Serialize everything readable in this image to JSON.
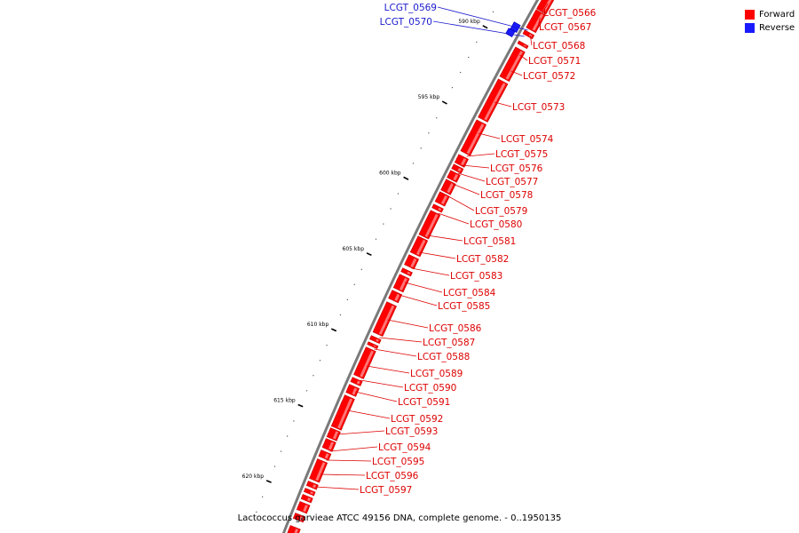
{
  "legend": {
    "forward_label": "Forward",
    "reverse_label": "Reverse",
    "forward_color": "#ff0000",
    "reverse_color": "#1a1aff"
  },
  "caption": "Lactococcus garvieae ATCC 49156 DNA, complete genome. - 0..1950135",
  "scale_ticks": [
    {
      "kbp": 590,
      "label": "590 kbp"
    },
    {
      "kbp": 595,
      "label": "595 kbp"
    },
    {
      "kbp": 600,
      "label": "600 kbp"
    },
    {
      "kbp": 605,
      "label": "605 kbp"
    },
    {
      "kbp": 610,
      "label": "610 kbp"
    },
    {
      "kbp": 615,
      "label": "615 kbp"
    },
    {
      "kbp": 620,
      "label": "620 kbp"
    }
  ],
  "genes": [
    {
      "name": "LCGT_0566",
      "strand": "forward"
    },
    {
      "name": "LCGT_0567",
      "strand": "forward"
    },
    {
      "name": "LCGT_0568",
      "strand": "forward"
    },
    {
      "name": "LCGT_0569",
      "strand": "reverse"
    },
    {
      "name": "LCGT_0570",
      "strand": "reverse"
    },
    {
      "name": "LCGT_0571",
      "strand": "forward"
    },
    {
      "name": "LCGT_0572",
      "strand": "forward"
    },
    {
      "name": "LCGT_0573",
      "strand": "forward"
    },
    {
      "name": "LCGT_0574",
      "strand": "forward"
    },
    {
      "name": "LCGT_0575",
      "strand": "forward"
    },
    {
      "name": "LCGT_0576",
      "strand": "forward"
    },
    {
      "name": "LCGT_0577",
      "strand": "forward"
    },
    {
      "name": "LCGT_0578",
      "strand": "forward"
    },
    {
      "name": "LCGT_0579",
      "strand": "forward"
    },
    {
      "name": "LCGT_0580",
      "strand": "forward"
    },
    {
      "name": "LCGT_0581",
      "strand": "forward"
    },
    {
      "name": "LCGT_0582",
      "strand": "forward"
    },
    {
      "name": "LCGT_0583",
      "strand": "forward"
    },
    {
      "name": "LCGT_0584",
      "strand": "forward"
    },
    {
      "name": "LCGT_0585",
      "strand": "forward"
    },
    {
      "name": "LCGT_0586",
      "strand": "forward"
    },
    {
      "name": "LCGT_0587",
      "strand": "forward"
    },
    {
      "name": "LCGT_0588",
      "strand": "forward"
    },
    {
      "name": "LCGT_0589",
      "strand": "forward"
    },
    {
      "name": "LCGT_0590",
      "strand": "forward"
    },
    {
      "name": "LCGT_0591",
      "strand": "forward"
    },
    {
      "name": "LCGT_0592",
      "strand": "forward"
    },
    {
      "name": "LCGT_0593",
      "strand": "forward"
    },
    {
      "name": "LCGT_0594",
      "strand": "forward"
    },
    {
      "name": "LCGT_0595",
      "strand": "forward"
    },
    {
      "name": "LCGT_0596",
      "strand": "forward"
    },
    {
      "name": "LCGT_0597",
      "strand": "forward"
    }
  ]
}
